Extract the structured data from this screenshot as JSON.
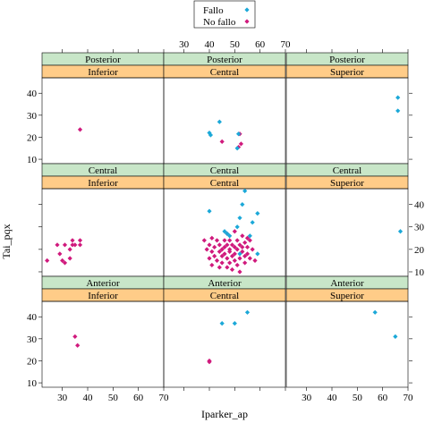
{
  "chart_data": {
    "type": "scatter",
    "xlabel": "Iparker_ap",
    "ylabel": "Tai_pqx",
    "xlim": [
      22,
      70
    ],
    "ylim": [
      8,
      47
    ],
    "x_ticks": [
      30,
      40,
      50,
      60,
      70
    ],
    "y_ticks": [
      10,
      20,
      30,
      40
    ],
    "legend": {
      "placement": "top-center",
      "entries": [
        {
          "name": "Fallo",
          "color": "#1ba8d8"
        },
        {
          "name": "No fallo",
          "color": "#d01a7d"
        }
      ]
    },
    "strip_colors": {
      "outer": "#c8e6c8",
      "inner": "#ffcc88"
    },
    "rows": [
      "Posterior",
      "Central",
      "Anterior"
    ],
    "cols": [
      "Inferior",
      "Central",
      "Superior"
    ],
    "panels": [
      {
        "row": "Posterior",
        "col": "Inferior",
        "fallo": [],
        "nofallo": [
          [
            37,
            23.5
          ]
        ]
      },
      {
        "row": "Posterior",
        "col": "Central",
        "fallo": [
          [
            40,
            22
          ],
          [
            40.5,
            21
          ],
          [
            44,
            27
          ],
          [
            51,
            15
          ],
          [
            51.5,
            21.5
          ]
        ],
        "nofallo": [
          [
            45,
            18
          ],
          [
            52,
            21.5
          ],
          [
            52.5,
            17
          ],
          [
            51.5,
            15.5
          ]
        ]
      },
      {
        "row": "Posterior",
        "col": "Superior",
        "fallo": [
          [
            66,
            38
          ],
          [
            66,
            32
          ]
        ],
        "nofallo": []
      },
      {
        "row": "Central",
        "col": "Inferior",
        "fallo": [],
        "nofallo": [
          [
            24,
            15
          ],
          [
            28,
            22
          ],
          [
            29,
            18
          ],
          [
            30,
            15
          ],
          [
            31,
            22
          ],
          [
            31,
            14
          ],
          [
            33,
            20
          ],
          [
            33,
            16
          ],
          [
            34,
            24
          ],
          [
            34,
            22
          ],
          [
            35,
            22
          ],
          [
            37,
            24
          ],
          [
            37,
            22
          ]
        ]
      },
      {
        "row": "Central",
        "col": "Central",
        "fallo": [
          [
            40,
            37
          ],
          [
            46,
            28
          ],
          [
            47,
            27
          ],
          [
            48,
            26
          ],
          [
            51,
            30
          ],
          [
            52,
            34
          ],
          [
            53,
            40
          ],
          [
            54,
            46
          ],
          [
            56,
            26
          ],
          [
            57,
            32
          ],
          [
            59,
            36
          ],
          [
            59,
            18
          ],
          [
            52,
            18
          ]
        ],
        "nofallo": [
          [
            38,
            24
          ],
          [
            39,
            20
          ],
          [
            40,
            22
          ],
          [
            40,
            16
          ],
          [
            41,
            25
          ],
          [
            41,
            19
          ],
          [
            41,
            13
          ],
          [
            42,
            21
          ],
          [
            42,
            17
          ],
          [
            43,
            24
          ],
          [
            43,
            15
          ],
          [
            44,
            22
          ],
          [
            44,
            19
          ],
          [
            44,
            12
          ],
          [
            45,
            20
          ],
          [
            45,
            17
          ],
          [
            45,
            14
          ],
          [
            46,
            24
          ],
          [
            46,
            21
          ],
          [
            46,
            18
          ],
          [
            47,
            22
          ],
          [
            47,
            16
          ],
          [
            47,
            12
          ],
          [
            48,
            24
          ],
          [
            48,
            20
          ],
          [
            48,
            19
          ],
          [
            48,
            14
          ],
          [
            49,
            22
          ],
          [
            49,
            17
          ],
          [
            49,
            11
          ],
          [
            50,
            21
          ],
          [
            50,
            18
          ],
          [
            50,
            15
          ],
          [
            51,
            24
          ],
          [
            51,
            20
          ],
          [
            51,
            13
          ],
          [
            52,
            22
          ],
          [
            52,
            16
          ],
          [
            52,
            10
          ],
          [
            53,
            26
          ],
          [
            53,
            21
          ],
          [
            53,
            19
          ],
          [
            54,
            23
          ],
          [
            54,
            17
          ],
          [
            54,
            14
          ],
          [
            55,
            25
          ],
          [
            55,
            21
          ],
          [
            55,
            18
          ],
          [
            56,
            24
          ],
          [
            56,
            16
          ],
          [
            57,
            20
          ],
          [
            58,
            15
          ],
          [
            50,
            28
          ],
          [
            47,
            27
          ]
        ]
      },
      {
        "row": "Central",
        "col": "Superior",
        "fallo": [
          [
            67,
            28
          ]
        ],
        "nofallo": []
      },
      {
        "row": "Anterior",
        "col": "Inferior",
        "fallo": [],
        "nofallo": [
          [
            35,
            31
          ],
          [
            36,
            27
          ]
        ]
      },
      {
        "row": "Anterior",
        "col": "Central",
        "fallo": [
          [
            45,
            37
          ],
          [
            50,
            37
          ],
          [
            55,
            42
          ]
        ],
        "nofallo": [
          [
            40,
            20
          ],
          [
            40,
            19.5
          ]
        ]
      },
      {
        "row": "Anterior",
        "col": "Superior",
        "fallo": [
          [
            57,
            42
          ],
          [
            65,
            31
          ]
        ],
        "nofallo": []
      }
    ]
  }
}
